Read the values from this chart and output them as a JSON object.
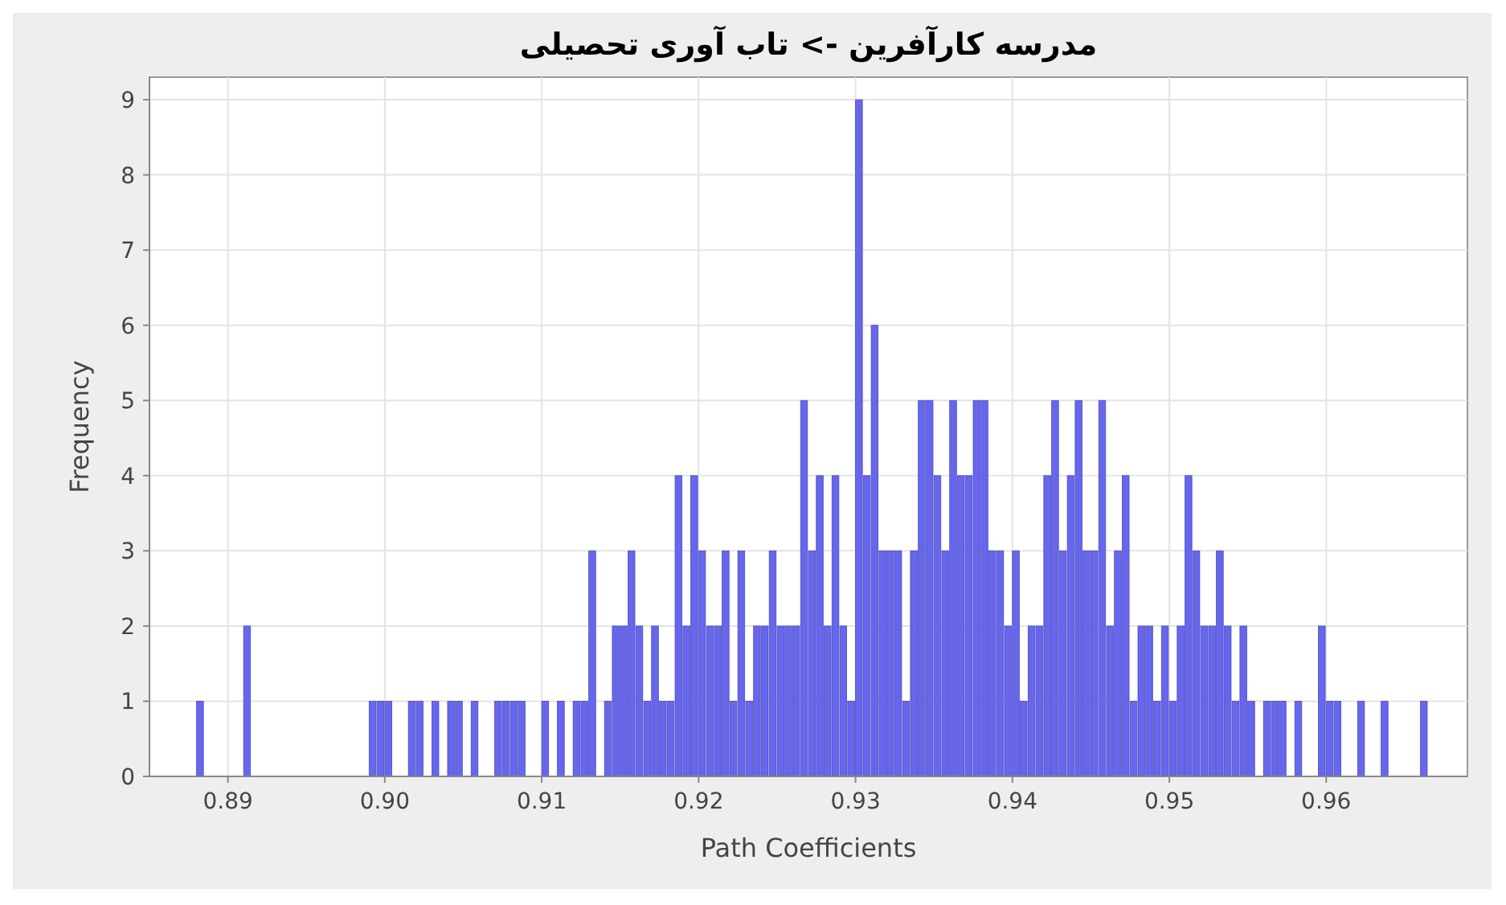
{
  "chart_data": {
    "type": "histogram",
    "title": "مدرسه کارآفرین -> تاب آوری تحصیلی",
    "xlabel": "Path Coefficients",
    "ylabel": "Frequency",
    "color": "#6666ee",
    "grid": true,
    "bins": [
      0.885,
      0.8855,
      0.886,
      0.8865,
      0.887,
      0.8875,
      0.888,
      0.8885,
      0.889,
      0.8895,
      0.89,
      0.8905,
      0.891,
      0.8915,
      0.892,
      0.8925,
      0.893,
      0.8935,
      0.894,
      0.8945,
      0.895,
      0.8955,
      0.896,
      0.8965,
      0.897,
      0.8975,
      0.898,
      0.8985,
      0.899,
      0.8995,
      0.9,
      0.9005,
      0.901,
      0.9015,
      0.902,
      0.9025,
      0.903,
      0.9035,
      0.904,
      0.9045,
      0.905,
      0.9055,
      0.906,
      0.9065,
      0.907,
      0.9075,
      0.908,
      0.9085,
      0.909,
      0.9095,
      0.91,
      0.9105,
      0.911,
      0.9115,
      0.912,
      0.9125,
      0.913,
      0.9135,
      0.914,
      0.9145,
      0.915,
      0.9155,
      0.916,
      0.9165,
      0.917,
      0.9175,
      0.918,
      0.9185,
      0.919,
      0.9195,
      0.92,
      0.9205,
      0.921,
      0.9215,
      0.922,
      0.9225,
      0.923,
      0.9235,
      0.924,
      0.9245,
      0.925,
      0.9255,
      0.926,
      0.9265,
      0.927,
      0.9275,
      0.928,
      0.9285,
      0.929,
      0.9295,
      0.93,
      0.9305,
      0.931,
      0.9315,
      0.932,
      0.9325,
      0.933,
      0.9335,
      0.934,
      0.9345,
      0.935,
      0.9355,
      0.936,
      0.9365,
      0.937,
      0.9375,
      0.938,
      0.9385,
      0.939,
      0.9395,
      0.94,
      0.9405,
      0.941,
      0.9415,
      0.942,
      0.9425,
      0.943,
      0.9435,
      0.944,
      0.9445,
      0.945,
      0.9455,
      0.946,
      0.9465,
      0.947,
      0.9475,
      0.948,
      0.9485,
      0.949,
      0.9495,
      0.95,
      0.9505,
      0.951,
      0.9515,
      0.952,
      0.9525,
      0.953,
      0.9535,
      0.954,
      0.9545,
      0.955,
      0.9555,
      0.956,
      0.9565,
      0.957,
      0.9575,
      0.958,
      0.9585,
      0.959,
      0.9595,
      0.96,
      0.9605,
      0.961,
      0.9615,
      0.962,
      0.9625,
      0.963,
      0.9635,
      0.964,
      0.9645,
      0.965,
      0.9655,
      0.966,
      0.9665,
      0.967,
      0.9675,
      0.968,
      0.9685,
      0.969
    ],
    "values": [
      0,
      0,
      0,
      0,
      0,
      0,
      1,
      0,
      0,
      0,
      0,
      0,
      2,
      0,
      0,
      0,
      0,
      0,
      0,
      0,
      0,
      0,
      0,
      0,
      0,
      0,
      0,
      0,
      1,
      1,
      1,
      0,
      0,
      1,
      1,
      0,
      1,
      0,
      1,
      1,
      0,
      1,
      0,
      0,
      1,
      1,
      1,
      1,
      0,
      0,
      1,
      0,
      1,
      0,
      1,
      1,
      3,
      0,
      1,
      2,
      2,
      3,
      2,
      1,
      2,
      1,
      1,
      4,
      2,
      4,
      3,
      2,
      2,
      3,
      1,
      3,
      1,
      2,
      2,
      3,
      2,
      2,
      2,
      5,
      3,
      4,
      2,
      4,
      2,
      1,
      9,
      4,
      6,
      3,
      3,
      3,
      1,
      3,
      5,
      5,
      4,
      3,
      5,
      4,
      4,
      5,
      5,
      3,
      3,
      2,
      3,
      1,
      2,
      2,
      4,
      5,
      3,
      4,
      5,
      3,
      3,
      5,
      2,
      3,
      4,
      1,
      2,
      2,
      1,
      2,
      1,
      2,
      4,
      3,
      2,
      2,
      3,
      2,
      1,
      2,
      1,
      0,
      1,
      1,
      1,
      0,
      1,
      0,
      0,
      2,
      1,
      1,
      0,
      0,
      1,
      0,
      0,
      1,
      0,
      0,
      0,
      0,
      1,
      0,
      0,
      0,
      0,
      0
    ],
    "xlim": [
      0.885,
      0.969
    ],
    "xticks": [
      {
        "value": 0.89,
        "label": "0.89"
      },
      {
        "value": 0.9,
        "label": "0.90"
      },
      {
        "value": 0.91,
        "label": "0.91"
      },
      {
        "value": 0.92,
        "label": "0.92"
      },
      {
        "value": 0.93,
        "label": "0.93"
      },
      {
        "value": 0.94,
        "label": "0.94"
      },
      {
        "value": 0.95,
        "label": "0.95"
      },
      {
        "value": 0.96,
        "label": "0.96"
      }
    ],
    "ylim": [
      0,
      9.3
    ],
    "yticks": [
      0,
      1,
      2,
      3,
      4,
      5,
      6,
      7,
      8,
      9
    ]
  }
}
